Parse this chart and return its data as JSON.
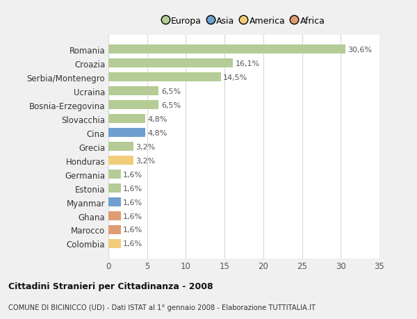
{
  "categories": [
    "Romania",
    "Croazia",
    "Serbia/Montenegro",
    "Ucraina",
    "Bosnia-Erzegovina",
    "Slovacchia",
    "Cina",
    "Grecia",
    "Honduras",
    "Germania",
    "Estonia",
    "Myanmar",
    "Ghana",
    "Marocco",
    "Colombia"
  ],
  "values": [
    30.6,
    16.1,
    14.5,
    6.5,
    6.5,
    4.8,
    4.8,
    3.2,
    3.2,
    1.6,
    1.6,
    1.6,
    1.6,
    1.6,
    1.6
  ],
  "labels": [
    "30,6%",
    "16,1%",
    "14,5%",
    "6,5%",
    "6,5%",
    "4,8%",
    "4,8%",
    "3,2%",
    "3,2%",
    "1,6%",
    "1,6%",
    "1,6%",
    "1,6%",
    "1,6%",
    "1,6%"
  ],
  "colors": [
    "#b5cc96",
    "#b5cc96",
    "#b5cc96",
    "#b5cc96",
    "#b5cc96",
    "#b5cc96",
    "#6e9fd0",
    "#b5cc96",
    "#f0cd7a",
    "#b5cc96",
    "#b5cc96",
    "#6e9fd0",
    "#e09c72",
    "#e09c72",
    "#f0cd7a"
  ],
  "legend_labels": [
    "Europa",
    "Asia",
    "America",
    "Africa"
  ],
  "legend_colors": [
    "#b5cc96",
    "#6e9fd0",
    "#f0cd7a",
    "#e09c72"
  ],
  "title": "Cittadini Stranieri per Cittadinanza - 2008",
  "subtitle": "COMUNE DI BICINICCO (UD) - Dati ISTAT al 1° gennaio 2008 - Elaborazione TUTTITALIA.IT",
  "xlim": [
    0,
    35
  ],
  "xticks": [
    0,
    5,
    10,
    15,
    20,
    25,
    30,
    35
  ],
  "bg_color": "#f0f0f0",
  "plot_bg_color": "#ffffff",
  "grid_color": "#d8d8d8"
}
